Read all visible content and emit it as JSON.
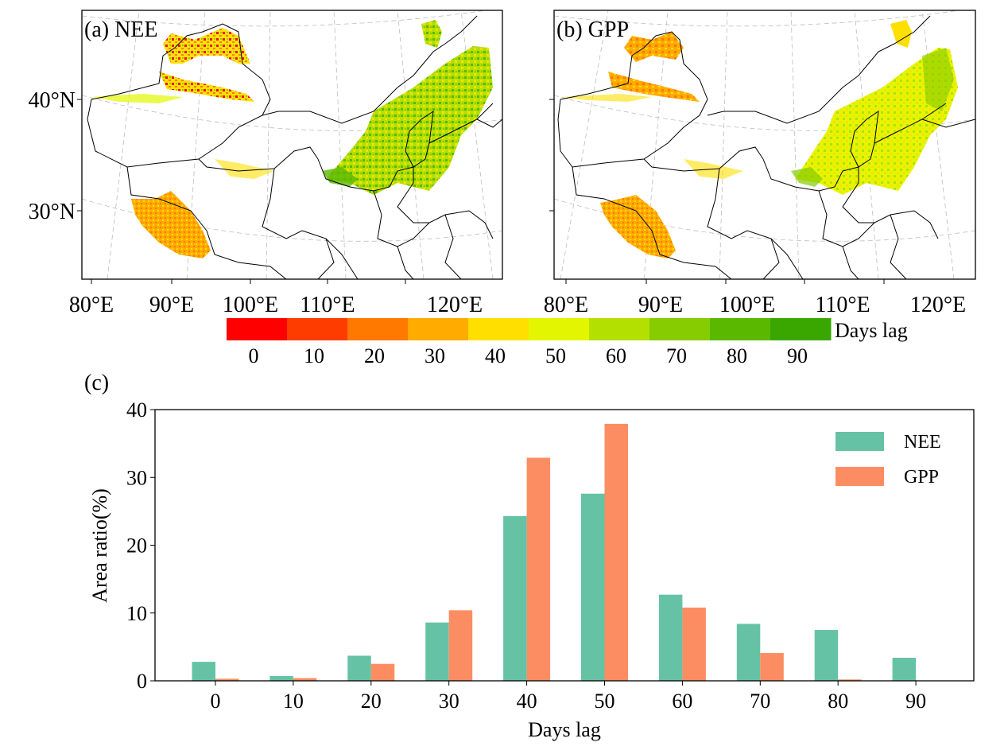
{
  "maps": [
    {
      "panel_label": "(a) NEE",
      "lat_ticks": [
        "40°N",
        "30°N"
      ],
      "lon_ticks": [
        "80°E",
        "90°E",
        "100°E",
        "110°E",
        "120°E"
      ]
    },
    {
      "panel_label": "(b) GPP",
      "lat_ticks": [
        "",
        ""
      ],
      "lon_ticks": [
        "80°E",
        "90°E",
        "100°E",
        "110°E",
        "120°E"
      ]
    }
  ],
  "colorbar": {
    "label": "Days lag",
    "ticks": [
      "0",
      "10",
      "20",
      "30",
      "40",
      "50",
      "60",
      "70",
      "80",
      "90"
    ],
    "colors": [
      "#ff0000",
      "#ff3c00",
      "#ff7800",
      "#ffab00",
      "#ffdf00",
      "#e3f600",
      "#b4e000",
      "#86cc00",
      "#5ab800",
      "#3aa700"
    ]
  },
  "chart_data": {
    "type": "bar",
    "panel_label": "(c)",
    "categories": [
      "0",
      "10",
      "20",
      "30",
      "40",
      "50",
      "60",
      "70",
      "80",
      "90"
    ],
    "series": [
      {
        "name": "NEE",
        "color": "#66c2a5",
        "values": [
          2.8,
          0.7,
          3.7,
          8.6,
          24.3,
          27.6,
          12.7,
          8.4,
          7.5,
          3.4
        ]
      },
      {
        "name": "GPP",
        "color": "#fc8d62",
        "values": [
          0.3,
          0.4,
          2.5,
          10.4,
          32.9,
          37.9,
          10.8,
          4.1,
          0.2,
          0.0
        ]
      }
    ],
    "xlabel": "Days lag",
    "ylabel": "Area ratio(%)",
    "ylim": [
      0,
      40
    ],
    "yticks": [
      "0",
      "10",
      "20",
      "30",
      "40"
    ],
    "grid": false,
    "legend": "top-right"
  }
}
